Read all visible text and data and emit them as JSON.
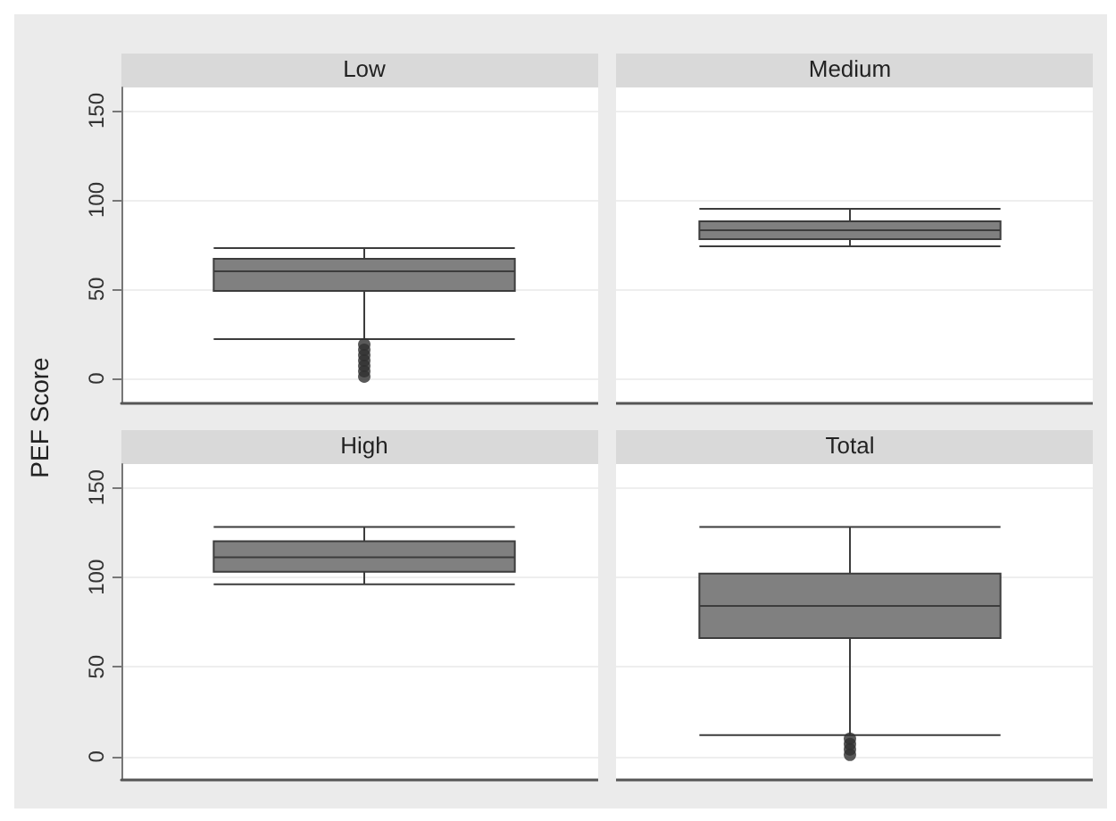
{
  "chart_data": [
    {
      "type": "box",
      "categories": [
        "Low",
        "Medium"
      ],
      "ylabel": "PEF Score",
      "ylim": [
        -14,
        163
      ],
      "yticks": [
        0,
        50,
        100,
        150
      ],
      "grid": "y",
      "series": [
        {
          "color": "#808080",
          "boxes": [
            {
              "low": 22,
              "q1": 49,
              "median": 60,
              "q3": 67,
              "high": 73,
              "outliers": [
                1,
                4,
                7,
                10,
                13,
                16,
                19
              ]
            },
            {
              "low": 74,
              "q1": 78,
              "median": 83,
              "q3": 88,
              "high": 95
            }
          ]
        }
      ]
    },
    {
      "type": "box",
      "categories": [
        "High",
        "Total"
      ],
      "ylim": [
        -13,
        163
      ],
      "yticks": [
        0,
        50,
        100,
        150
      ],
      "grid": "y",
      "series": [
        {
          "color": "#808080",
          "boxes": [
            {
              "low": 96,
              "q1": 103,
              "median": 111,
              "q3": 120,
              "high": 128
            },
            {
              "low": 12,
              "q1": 66,
              "median": 84,
              "q3": 102,
              "high": 128,
              "outliers": [
                1,
                4,
                7,
                10
              ]
            }
          ]
        }
      ]
    }
  ]
}
